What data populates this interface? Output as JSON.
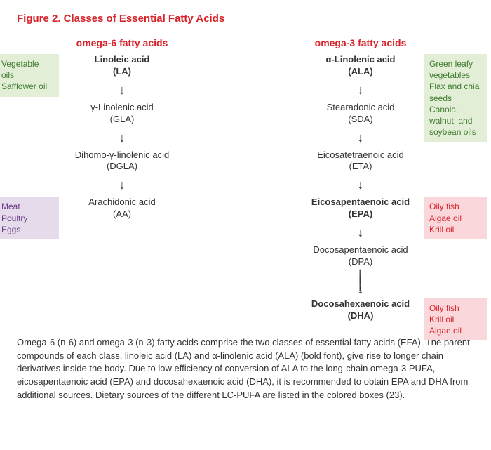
{
  "figure_title": "Figure 2. Classes of Essential Fatty Acids",
  "colors": {
    "accent_red": "#d8232a",
    "text": "#333333",
    "box_green_bg": "#e2efd6",
    "box_green_text": "#3f7a2f",
    "box_purple_bg": "#e6dbea",
    "box_purple_text": "#6a3d8a",
    "box_pink_bg": "#f9d7da",
    "box_pink_text": "#d8232a",
    "background": "#ffffff"
  },
  "diagram": {
    "type": "flowchart",
    "omega6": {
      "header": "omega-6 fatty acids",
      "nodes": [
        {
          "name": "Linoleic acid",
          "abbr": "(LA)",
          "bold": true
        },
        {
          "name": "γ-Linolenic acid",
          "abbr": "(GLA)",
          "bold": false
        },
        {
          "name": "Dihomo-γ-linolenic acid",
          "abbr": "(DGLA)",
          "bold": false
        },
        {
          "name": "Arachidonic acid",
          "abbr": "(AA)",
          "bold": false
        }
      ],
      "sources": [
        {
          "lines": [
            "Vegetable oils",
            "Safflower oil"
          ],
          "style": "green",
          "attach": 0,
          "side": "left"
        },
        {
          "lines": [
            "Meat",
            "Poultry",
            "Eggs"
          ],
          "style": "purple",
          "attach": 3,
          "side": "left"
        }
      ]
    },
    "omega3": {
      "header": "omega-3 fatty acids",
      "nodes": [
        {
          "name": "α-Linolenic acid",
          "abbr": "(ALA)",
          "bold": true
        },
        {
          "name": "Stearadonic acid",
          "abbr": "(SDA)",
          "bold": false
        },
        {
          "name": "Eicosatetraenoic acid",
          "abbr": "(ETA)",
          "bold": false
        },
        {
          "name": "Eicosapentaenoic acid",
          "abbr": "(EPA)",
          "bold": true
        },
        {
          "name": "Docosapentaenoic acid",
          "abbr": "(DPA)",
          "bold": false
        },
        {
          "name": "Docosahexaenoic acid",
          "abbr": "(DHA)",
          "bold": true
        }
      ],
      "sources": [
        {
          "lines": [
            "Green leafy",
            "vegetables",
            "Flax and chia seeds",
            "Canola, walnut, and",
            "soybean oils"
          ],
          "style": "green",
          "attach": 0,
          "side": "right"
        },
        {
          "lines": [
            "Oily fish",
            "Algae oil",
            "Krill oil"
          ],
          "style": "pink",
          "attach": 3,
          "side": "right"
        },
        {
          "lines": [
            "Oily fish",
            "Krill oil",
            "Algae oil"
          ],
          "style": "pink",
          "attach": 5,
          "side": "right"
        }
      ],
      "long_arrow_after_index": 4
    }
  },
  "caption": "Omega-6 (n-6) and omega-3 (n-3) fatty acids comprise the two classes of essential fatty acids (EFA). The parent compounds of each class, linoleic acid (LA) and α-linolenic acid (ALA) (bold font), give rise to longer chain derivatives inside the body. Due to low efficiency of conversion of ALA to the long-chain omega-3 PUFA, eicosapentaenoic acid (EPA) and docosahexaenoic acid (DHA), it is recommended to obtain EPA and DHA from additional sources. Dietary sources of the different LC-PUFA are listed in the colored boxes (23)."
}
